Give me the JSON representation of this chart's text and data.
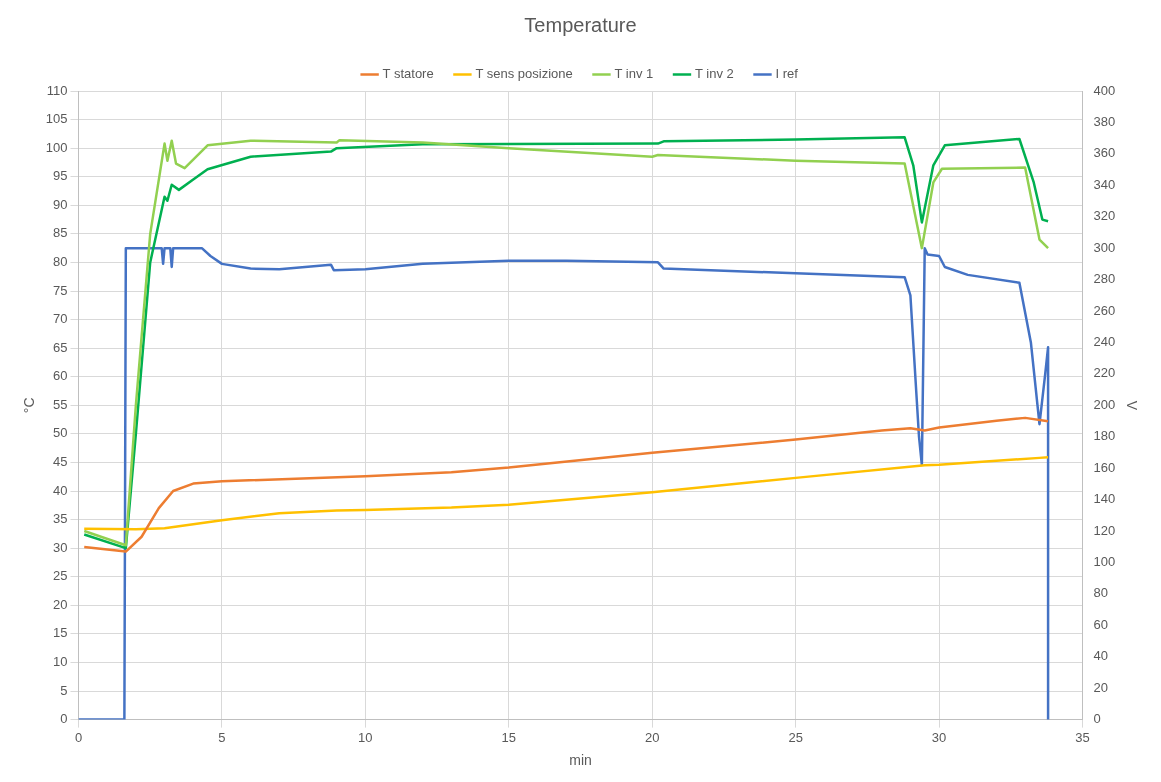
{
  "chart_data": {
    "type": "line",
    "title": "Temperature",
    "xlabel": "min",
    "ylabel": "°C",
    "y2label": "V",
    "xlim": [
      0,
      35
    ],
    "xticks": [
      0,
      5,
      10,
      15,
      20,
      25,
      30,
      35
    ],
    "ylim": [
      0,
      110
    ],
    "yticks": [
      0,
      5,
      10,
      15,
      20,
      25,
      30,
      35,
      40,
      45,
      50,
      55,
      60,
      65,
      70,
      75,
      80,
      85,
      90,
      95,
      100,
      105,
      110
    ],
    "y2lim": [
      0,
      400
    ],
    "y2ticks": [
      0,
      20,
      40,
      60,
      80,
      100,
      120,
      140,
      160,
      180,
      200,
      220,
      240,
      260,
      280,
      300,
      320,
      340,
      360,
      380,
      400
    ],
    "grid": true,
    "legend": "top",
    "marker": "none",
    "line_style": "solid",
    "series": [
      {
        "name": "T statore",
        "color": "#ed7d31",
        "x": [
          0.2,
          1.65,
          2.2,
          2.8,
          3.3,
          4,
          5,
          10,
          13,
          15,
          20,
          25,
          28,
          29,
          29.5,
          30,
          32,
          33,
          33.8
        ],
        "values": [
          30.2,
          29.4,
          32,
          37,
          40,
          41.3,
          41.7,
          42.6,
          43.3,
          44.1,
          46.7,
          49,
          50.6,
          51,
          50.6,
          51.1,
          52.3,
          52.8,
          52.2
        ]
      },
      {
        "name": "T sens posizione",
        "color": "#ffc000",
        "x": [
          0.2,
          2,
          3,
          4,
          5,
          7,
          9,
          10,
          13,
          15,
          20,
          25,
          29.5,
          30,
          33.5,
          33.8
        ],
        "values": [
          33.4,
          33.3,
          33.5,
          34.2,
          34.9,
          36.1,
          36.6,
          36.7,
          37.1,
          37.6,
          39.8,
          42.3,
          44.5,
          44.6,
          45.8,
          45.9
        ]
      },
      {
        "name": "T inv 1",
        "color": "#92d050",
        "x": [
          0.2,
          1.65,
          2,
          2.5,
          3,
          3.1,
          3.25,
          3.4,
          3.7,
          4.5,
          6,
          9,
          9.1,
          12,
          15,
          20,
          20.2,
          25,
          28.8,
          29.4,
          29.8,
          30.1,
          33,
          33.5,
          33.8
        ],
        "values": [
          33,
          30.5,
          55,
          85,
          100.8,
          97.8,
          101.3,
          97.3,
          96.5,
          100.5,
          101.3,
          101,
          101.4,
          101,
          100,
          98.5,
          98.8,
          97.8,
          97.3,
          82.5,
          94,
          96.4,
          96.6,
          84,
          82.5
        ]
      },
      {
        "name": "T inv 2",
        "color": "#00b050",
        "x": [
          0.2,
          1.65,
          2,
          2.5,
          3,
          3.1,
          3.25,
          3.5,
          4,
          4.5,
          6,
          8.8,
          9,
          12,
          20.2,
          20.4,
          25,
          28.8,
          29.1,
          29.4,
          29.8,
          30.2,
          32.8,
          33.3,
          33.6,
          33.8
        ],
        "values": [
          32.4,
          30,
          50,
          80,
          91.5,
          90.8,
          93.6,
          92.7,
          94.5,
          96.3,
          98.5,
          99.4,
          100,
          100.7,
          100.8,
          101.2,
          101.5,
          101.9,
          97,
          87,
          97,
          100.5,
          101.6,
          94,
          87.5,
          87.2
        ]
      },
      {
        "name": "I ref",
        "color": "#4472c4",
        "axis": "y2",
        "x": [
          0,
          1.6,
          1.65,
          2.9,
          2.95,
          3,
          3.2,
          3.25,
          3.3,
          4.3,
          4.6,
          5,
          6,
          7,
          8.8,
          8.9,
          10,
          12,
          15,
          17,
          20.2,
          20.4,
          25,
          28.8,
          29,
          29.3,
          29.4,
          29.5,
          29.6,
          30,
          30.2,
          31,
          32.8,
          33.2,
          33.5,
          33.7,
          33.8,
          33.8
        ],
        "values": [
          0,
          0,
          300,
          300,
          290,
          300,
          300,
          288,
          300,
          300,
          295,
          290,
          287,
          286.5,
          289.5,
          286,
          286.5,
          290,
          292,
          292,
          291,
          287,
          284,
          281.5,
          270,
          180,
          162,
          300,
          296,
          295,
          288,
          283,
          278,
          240,
          188,
          220,
          237,
          0
        ]
      }
    ]
  }
}
